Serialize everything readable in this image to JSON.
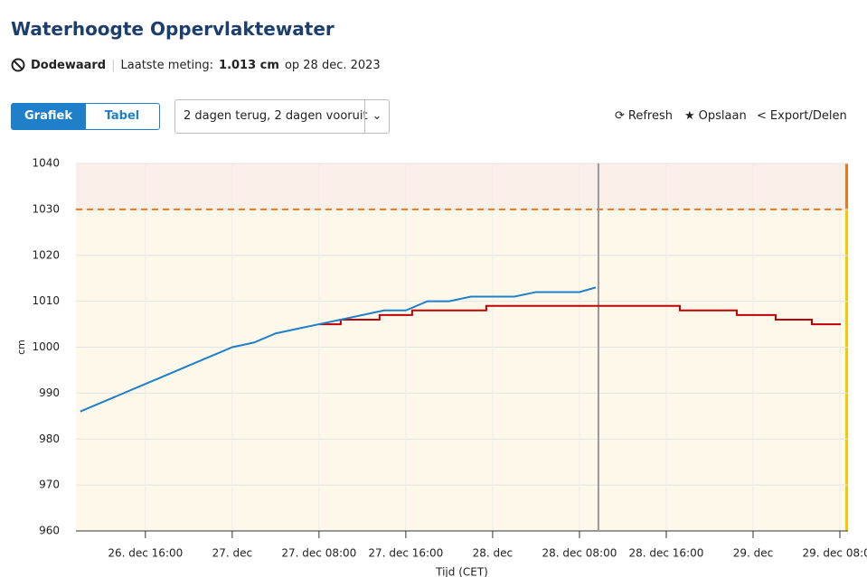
{
  "header": {
    "title": "Waterhoogte Oppervlaktewater",
    "location": "Dodewaard",
    "last_label": "Laatste meting:",
    "last_value": "1.013 cm",
    "last_date": "op 28 dec. 2023"
  },
  "toolbar": {
    "tabs": [
      "Grafiek",
      "Tabel"
    ],
    "range": "2 dagen terug, 2 dagen vooruit",
    "actions": [
      "Refresh",
      "Opslaan",
      "Export/Delen"
    ]
  },
  "chart_data": {
    "type": "line",
    "y_label": "cm",
    "x_label": "Tijd (CET)",
    "xlim": [
      "26. dec 09:36",
      "29. dec 08:45"
    ],
    "xticks": [
      "26. dec 16:00",
      {
        "value": "27. dec 00:00",
        "label": "27. dec"
      },
      "27. dec 08:00",
      "27. dec 16:00",
      {
        "value": "28. dec 00:00",
        "label": "28. dec"
      },
      "28. dec 08:00",
      "28. dec 16:00",
      {
        "value": "29. dec 00:00",
        "label": "29. dec"
      },
      "29. dec 08:00"
    ],
    "ylim": [
      960,
      1040
    ],
    "yticks": [
      960,
      970,
      980,
      990,
      1000,
      1010,
      1020,
      1030,
      1040
    ],
    "grid": true,
    "threshold": 1030,
    "threshold_color": "#e8781e",
    "now": "28. dec 09:45",
    "series": [
      {
        "color": "#1f7fc8",
        "step": false,
        "x": [
          "26. dec 10:00",
          "26. dec 12:00",
          "26. dec 14:00",
          "26. dec 16:00",
          "26. dec 18:00",
          "26. dec 20:00",
          "26. dec 22:00",
          "27. dec 00:00",
          "27. dec 02:00",
          "27. dec 04:00",
          "27. dec 06:00",
          "27. dec 08:00",
          "27. dec 10:00",
          "27. dec 12:00",
          "27. dec 14:00",
          "27. dec 16:00",
          "27. dec 18:00",
          "27. dec 20:00",
          "27. dec 22:00",
          "28. dec 00:00",
          "28. dec 02:00",
          "28. dec 04:00",
          "28. dec 06:00",
          "28. dec 08:00",
          "28. dec 09:30"
        ],
        "values": [
          986,
          988,
          990,
          992,
          994,
          996,
          998,
          1000,
          1001,
          1003,
          1004,
          1005,
          1006,
          1007,
          1008,
          1008,
          1010,
          1010,
          1011,
          1011,
          1011,
          1012,
          1012,
          1012,
          1013
        ]
      },
      {
        "color": "#c00000",
        "step": true,
        "x": [
          "27. dec 08:00",
          "27. dec 10:00",
          "27. dec 13:35",
          "27. dec 16:35",
          "27. dec 23:25",
          "28. dec 17:15",
          "28. dec 22:30",
          "29. dec 02:05",
          "29. dec 05:25",
          "29. dec 08:05"
        ],
        "values": [
          1005,
          1006,
          1007,
          1008,
          1009,
          1008,
          1007,
          1006,
          1005,
          1005
        ]
      }
    ]
  }
}
